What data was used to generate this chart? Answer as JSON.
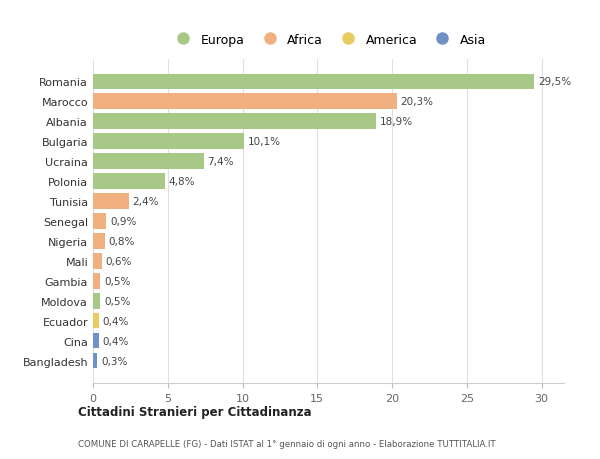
{
  "countries": [
    "Romania",
    "Marocco",
    "Albania",
    "Bulgaria",
    "Ucraina",
    "Polonia",
    "Tunisia",
    "Senegal",
    "Nigeria",
    "Mali",
    "Gambia",
    "Moldova",
    "Ecuador",
    "Cina",
    "Bangladesh"
  ],
  "values": [
    29.5,
    20.3,
    18.9,
    10.1,
    7.4,
    4.8,
    2.4,
    0.9,
    0.8,
    0.6,
    0.5,
    0.5,
    0.4,
    0.4,
    0.3
  ],
  "labels": [
    "29,5%",
    "20,3%",
    "18,9%",
    "10,1%",
    "7,4%",
    "4,8%",
    "2,4%",
    "0,9%",
    "0,8%",
    "0,6%",
    "0,5%",
    "0,5%",
    "0,4%",
    "0,4%",
    "0,3%"
  ],
  "continents": [
    "Europa",
    "Africa",
    "Europa",
    "Europa",
    "Europa",
    "Europa",
    "Africa",
    "Africa",
    "Africa",
    "Africa",
    "Africa",
    "Europa",
    "America",
    "Asia",
    "Asia"
  ],
  "colors": {
    "Europa": "#a8c888",
    "Africa": "#f0b080",
    "America": "#e8cc60",
    "Asia": "#7090c8"
  },
  "title_bold": "Cittadini Stranieri per Cittadinanza",
  "title_sub": "COMUNE DI CARAPELLE (FG) - Dati ISTAT al 1° gennaio di ogni anno - Elaborazione TUTTITALIA.IT",
  "xlim": [
    0,
    31.5
  ],
  "xticks": [
    0,
    5,
    10,
    15,
    20,
    25,
    30
  ],
  "background_color": "#ffffff",
  "bar_height": 0.78,
  "grid_color": "#e0e0e0",
  "legend_order": [
    "Europa",
    "Africa",
    "America",
    "Asia"
  ]
}
